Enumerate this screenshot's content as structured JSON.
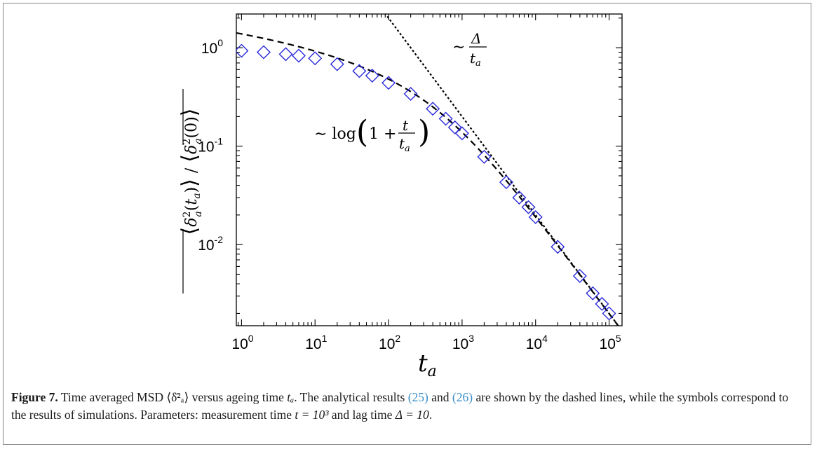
{
  "chart_data": {
    "type": "scatter",
    "xscale": "log",
    "yscale": "log",
    "xlim": [
      0.85,
      150000
    ],
    "ylim": [
      0.0015,
      2.2
    ],
    "xlabel": "t_a",
    "ylabel": "⟨δ̄²ₐ(tₐ)⟩ / ⟨δ̄²ₐ(0)⟩",
    "x_ticks": [
      {
        "value": 1,
        "base": "10",
        "exp": "0"
      },
      {
        "value": 10,
        "base": "10",
        "exp": "1"
      },
      {
        "value": 100,
        "base": "10",
        "exp": "2"
      },
      {
        "value": 1000,
        "base": "10",
        "exp": "3"
      },
      {
        "value": 10000,
        "base": "10",
        "exp": "4"
      },
      {
        "value": 100000,
        "base": "10",
        "exp": "5"
      }
    ],
    "y_ticks": [
      {
        "value": 1,
        "base": "10",
        "exp": "0"
      },
      {
        "value": 0.1,
        "base": "10",
        "exp": "-1"
      },
      {
        "value": 0.01,
        "base": "10",
        "exp": "-2"
      }
    ],
    "series": [
      {
        "kind": "markers",
        "marker": "diamond",
        "color": "#2a2adb",
        "points": [
          [
            1,
            0.93
          ],
          [
            2,
            0.9
          ],
          [
            4,
            0.86
          ],
          [
            6,
            0.83
          ],
          [
            10,
            0.78
          ],
          [
            20,
            0.68
          ],
          [
            40,
            0.58
          ],
          [
            60,
            0.52
          ],
          [
            100,
            0.44
          ],
          [
            200,
            0.34
          ],
          [
            400,
            0.24
          ],
          [
            600,
            0.19
          ],
          [
            800,
            0.155
          ],
          [
            1000,
            0.135
          ],
          [
            2000,
            0.078
          ],
          [
            4000,
            0.043
          ],
          [
            6000,
            0.03
          ],
          [
            8000,
            0.024
          ],
          [
            10000,
            0.019
          ],
          [
            20000,
            0.0095
          ],
          [
            40000,
            0.0048
          ],
          [
            60000,
            0.0032
          ],
          [
            80000,
            0.0025
          ],
          [
            100000,
            0.002
          ]
        ]
      },
      {
        "kind": "line",
        "style": "long-dash",
        "color": "#000000",
        "formula": "A*log(1+t/t_a)",
        "t": 1000,
        "A": 0.2
      },
      {
        "kind": "line",
        "style": "short-dash",
        "color": "#000000",
        "formula": "B*Delta/t_a",
        "Delta": 10,
        "B": 20
      }
    ],
    "annotations": [
      {
        "id": "log-annotation",
        "text": "∼ log(1 + t/tₐ)"
      },
      {
        "id": "delta-annotation",
        "text": "∼ Δ/tₐ"
      }
    ]
  },
  "caption": {
    "label": "Figure 7.",
    "text_1": " Time averaged MSD ",
    "msd_symbol": "⟨δ̄²ₐ⟩",
    "text_2": " versus ageing time ",
    "ta": "tₐ",
    "text_3": ". The analytical results ",
    "ref1": "(25)",
    "text_4": " and ",
    "ref2": "(26)",
    "text_5": " are shown by the dashed lines, while the symbols correspond to the results of simulations. Parameters: measurement time ",
    "param1": "t = 10³",
    "text_6": " and lag time ",
    "param2": "Δ = 10",
    "text_7": "."
  }
}
